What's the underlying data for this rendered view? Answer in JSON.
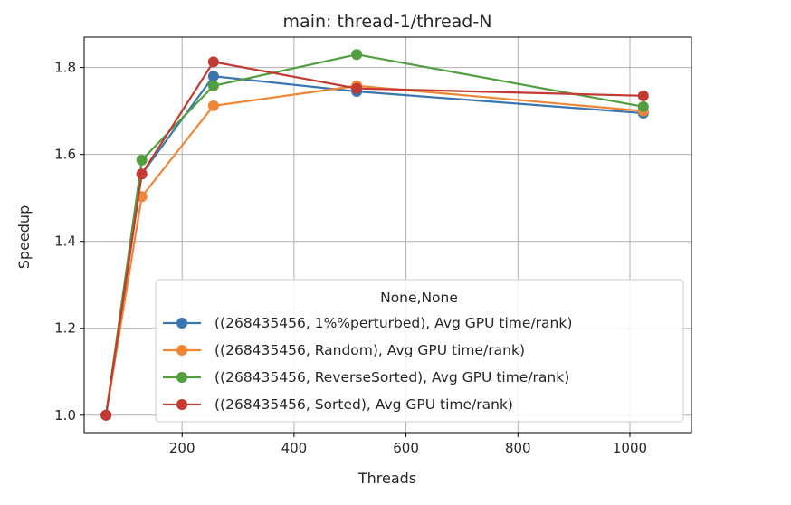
{
  "chart_data": {
    "type": "line",
    "title": "main: thread-1/thread-N",
    "xlabel": "Threads",
    "ylabel": "Speedup",
    "xlim": [
      25,
      1110
    ],
    "ylim": [
      0.96,
      1.87
    ],
    "xticks": [
      200,
      400,
      600,
      800,
      1000
    ],
    "yticks": [
      1.0,
      1.2,
      1.4,
      1.6,
      1.8
    ],
    "grid": true,
    "legend": {
      "title": "None,None",
      "placement": "lower-right"
    },
    "x": [
      64,
      128,
      256,
      512,
      1024
    ],
    "series": [
      {
        "name": "((268435456, 1%%perturbed), Avg GPU time/rank)",
        "color": "#3b75af",
        "values": [
          1.0,
          1.555,
          1.78,
          1.745,
          1.695
        ]
      },
      {
        "name": "((268435456, Random), Avg GPU time/rank)",
        "color": "#ef8636",
        "values": [
          1.0,
          1.503,
          1.712,
          1.758,
          1.7
        ]
      },
      {
        "name": "((268435456, ReverseSorted), Avg GPU time/rank)",
        "color": "#519e3e",
        "values": [
          1.0,
          1.587,
          1.758,
          1.83,
          1.71
        ]
      },
      {
        "name": "((268435456, Sorted), Avg GPU time/rank)",
        "color": "#c43a32",
        "values": [
          1.0,
          1.555,
          1.813,
          1.752,
          1.735
        ]
      }
    ]
  }
}
